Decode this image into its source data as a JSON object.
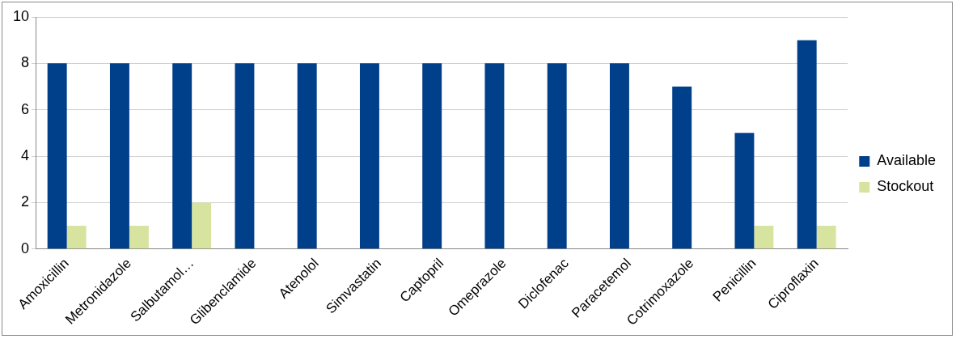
{
  "chart_data": {
    "type": "bar",
    "categories": [
      "Amoxicillin",
      "Metronidazole",
      "Salbutamol…",
      "Glibenclamide",
      "Atenolol",
      "Simvastatin",
      "Captopril",
      "Omeprazole",
      "Diclofenac",
      "Paracetemol",
      "Cotrimoxazole",
      "Penicillin",
      "Ciproflaxin"
    ],
    "series": [
      {
        "name": "Available",
        "color": "#003f8a",
        "values": [
          8,
          8,
          8,
          8,
          8,
          8,
          8,
          8,
          8,
          8,
          7,
          5,
          9
        ]
      },
      {
        "name": "Stockout",
        "color": "#d7e4a0",
        "values": [
          1,
          1,
          2,
          0,
          0,
          0,
          0,
          0,
          0,
          0,
          0,
          1,
          1
        ]
      }
    ],
    "ylim": [
      0,
      10
    ],
    "yticks": [
      0,
      2,
      4,
      6,
      8,
      10
    ],
    "grid": "y",
    "legend": "right"
  }
}
